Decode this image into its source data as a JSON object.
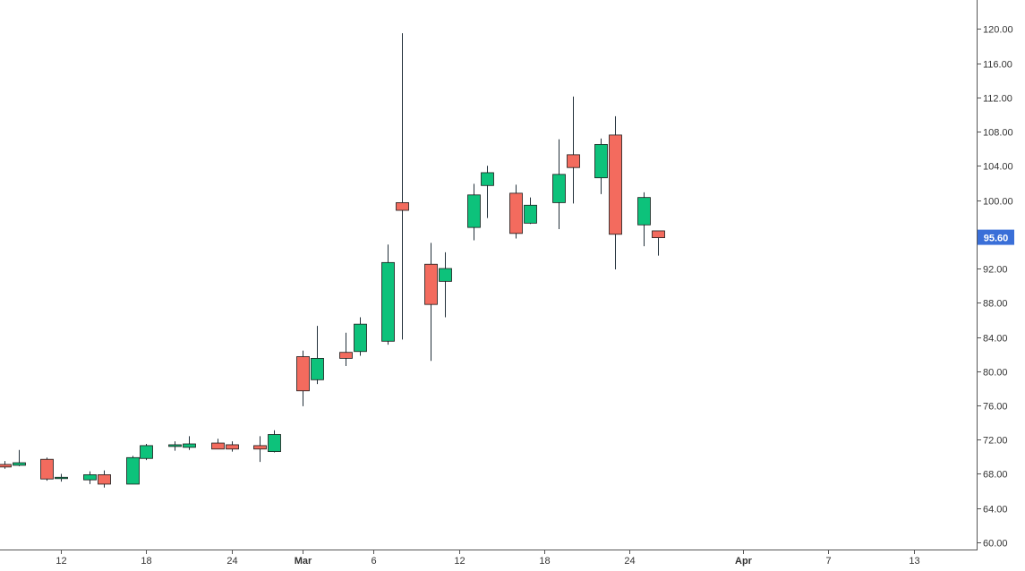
{
  "chart_data": {
    "type": "candlestick",
    "colors": {
      "up_fill": "#0dc27b",
      "down_fill": "#f36b5e",
      "border": "#1a1a1a",
      "wick": "#22303a",
      "axis": "#555555",
      "last_price_bg": "#3a6fd8",
      "last_price_text": "#ffffff"
    },
    "ylim": [
      58,
      124
    ],
    "y_ticks": [
      "60.00",
      "64.00",
      "68.00",
      "72.00",
      "76.00",
      "80.00",
      "84.00",
      "88.00",
      "92.00",
      "96.00",
      "100.00",
      "104.00",
      "108.00",
      "112.00",
      "116.00",
      "120.00"
    ],
    "x_ticks": [
      {
        "label": "12",
        "date": "2019-02-12",
        "major": false
      },
      {
        "label": "18",
        "date": "2019-02-18",
        "major": false
      },
      {
        "label": "24",
        "date": "2019-02-24",
        "major": false
      },
      {
        "label": "Mar",
        "date": "2019-03-01",
        "major": true
      },
      {
        "label": "6",
        "date": "2019-03-06",
        "major": false
      },
      {
        "label": "12",
        "date": "2019-03-12",
        "major": false
      },
      {
        "label": "18",
        "date": "2019-03-18",
        "major": false
      },
      {
        "label": "24",
        "date": "2019-03-24",
        "major": false
      },
      {
        "label": "Apr",
        "date": "2019-04-01",
        "major": true
      },
      {
        "label": "7",
        "date": "2019-04-07",
        "major": false
      },
      {
        "label": "13",
        "date": "2019-04-13",
        "major": false
      }
    ],
    "x_range": [
      "2019-02-07",
      "2019-04-14"
    ],
    "last_price": "95.60",
    "candles": [
      {
        "date": "2019-02-08",
        "open": 69.1,
        "high": 69.5,
        "low": 68.6,
        "close": 68.8
      },
      {
        "date": "2019-02-09",
        "open": 69.0,
        "high": 70.8,
        "low": 68.9,
        "close": 69.3
      },
      {
        "date": "2019-02-11",
        "open": 69.7,
        "high": 69.9,
        "low": 67.2,
        "close": 67.4
      },
      {
        "date": "2019-02-12",
        "open": 67.5,
        "high": 68.0,
        "low": 67.1,
        "close": 67.6
      },
      {
        "date": "2019-02-14",
        "open": 67.3,
        "high": 68.3,
        "low": 66.8,
        "close": 67.9
      },
      {
        "date": "2019-02-15",
        "open": 67.9,
        "high": 68.4,
        "low": 66.4,
        "close": 66.8
      },
      {
        "date": "2019-02-17",
        "open": 66.8,
        "high": 70.1,
        "low": 66.8,
        "close": 69.9
      },
      {
        "date": "2019-02-18",
        "open": 69.8,
        "high": 71.5,
        "low": 69.6,
        "close": 71.3
      },
      {
        "date": "2019-02-20",
        "open": 71.2,
        "high": 71.8,
        "low": 70.7,
        "close": 71.4
      },
      {
        "date": "2019-02-21",
        "open": 71.1,
        "high": 72.4,
        "low": 70.8,
        "close": 71.5
      },
      {
        "date": "2019-02-23",
        "open": 71.6,
        "high": 72.1,
        "low": 70.9,
        "close": 70.9
      },
      {
        "date": "2019-02-24",
        "open": 71.4,
        "high": 71.8,
        "low": 70.6,
        "close": 70.9
      },
      {
        "date": "2019-02-26",
        "open": 71.3,
        "high": 72.4,
        "low": 69.4,
        "close": 70.9
      },
      {
        "date": "2019-02-27",
        "open": 70.6,
        "high": 73.1,
        "low": 70.5,
        "close": 72.6
      },
      {
        "date": "2019-03-01",
        "open": 81.7,
        "high": 82.4,
        "low": 75.9,
        "close": 77.7
      },
      {
        "date": "2019-03-02",
        "open": 79.0,
        "high": 85.3,
        "low": 78.5,
        "close": 81.5
      },
      {
        "date": "2019-03-04",
        "open": 82.2,
        "high": 84.5,
        "low": 80.6,
        "close": 81.5
      },
      {
        "date": "2019-03-05",
        "open": 82.3,
        "high": 86.3,
        "low": 81.8,
        "close": 85.5
      },
      {
        "date": "2019-03-07",
        "open": 83.5,
        "high": 94.8,
        "low": 83.1,
        "close": 92.7
      },
      {
        "date": "2019-03-08",
        "open": 99.7,
        "high": 119.5,
        "low": 83.7,
        "close": 98.8
      },
      {
        "date": "2019-03-10",
        "open": 92.5,
        "high": 95.0,
        "low": 81.2,
        "close": 87.8
      },
      {
        "date": "2019-03-11",
        "open": 90.5,
        "high": 93.9,
        "low": 86.3,
        "close": 92.0
      },
      {
        "date": "2019-03-13",
        "open": 96.8,
        "high": 101.9,
        "low": 95.3,
        "close": 100.6
      },
      {
        "date": "2019-03-14",
        "open": 101.7,
        "high": 104.0,
        "low": 97.9,
        "close": 103.2
      },
      {
        "date": "2019-03-16",
        "open": 100.8,
        "high": 101.8,
        "low": 95.5,
        "close": 96.1
      },
      {
        "date": "2019-03-17",
        "open": 97.3,
        "high": 100.3,
        "low": 97.2,
        "close": 99.4
      },
      {
        "date": "2019-03-19",
        "open": 99.7,
        "high": 107.1,
        "low": 96.6,
        "close": 103.0
      },
      {
        "date": "2019-03-20",
        "open": 105.3,
        "high": 112.1,
        "low": 99.6,
        "close": 103.8
      },
      {
        "date": "2019-03-22",
        "open": 102.6,
        "high": 107.2,
        "low": 100.7,
        "close": 106.5
      },
      {
        "date": "2019-03-23",
        "open": 107.6,
        "high": 109.8,
        "low": 91.9,
        "close": 96.0
      },
      {
        "date": "2019-03-25",
        "open": 97.1,
        "high": 100.9,
        "low": 94.6,
        "close": 100.3
      },
      {
        "date": "2019-03-26",
        "open": 96.4,
        "high": 96.4,
        "low": 93.5,
        "close": 95.6
      }
    ]
  }
}
